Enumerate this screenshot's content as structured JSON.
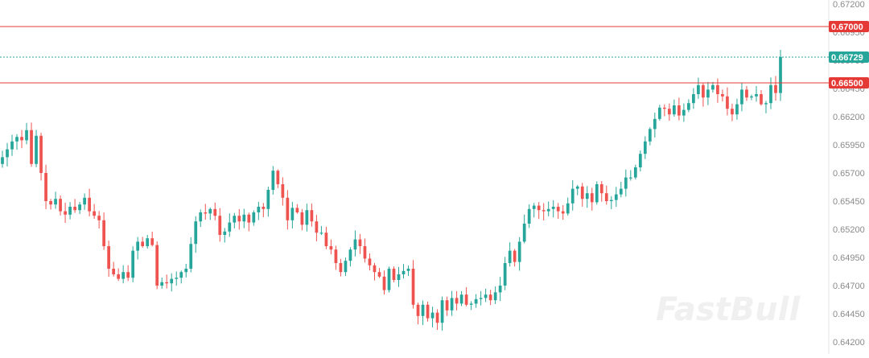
{
  "watermark": "FastBull",
  "colors": {
    "up": "#26a69a",
    "down": "#ef5350",
    "level_line": "#e53935",
    "current_line": "#26a69a"
  },
  "chart_data": {
    "type": "candlestick",
    "ylim": [
      0.642,
      0.672
    ],
    "y_ticks": [
      "0.67200",
      "0.66950",
      "0.66700",
      "0.66450",
      "0.66200",
      "0.65950",
      "0.65700",
      "0.65450",
      "0.65200",
      "0.64950",
      "0.64700",
      "0.64450",
      "0.64200"
    ],
    "levels": [
      {
        "value": 0.67,
        "label": "0.67000"
      },
      {
        "value": 0.665,
        "label": "0.66500"
      }
    ],
    "current_price": {
      "value": 0.66729,
      "label": "0.66729"
    },
    "closes": [
      0.6584,
      0.6591,
      0.6598,
      0.6602,
      0.6599,
      0.6608,
      0.6578,
      0.6603,
      0.657,
      0.6545,
      0.6542,
      0.6547,
      0.6536,
      0.6533,
      0.654,
      0.6537,
      0.6542,
      0.6548,
      0.6536,
      0.6532,
      0.6528,
      0.6505,
      0.6485,
      0.648,
      0.6476,
      0.6482,
      0.6477,
      0.6501,
      0.6509,
      0.6505,
      0.6512,
      0.6506,
      0.647,
      0.6473,
      0.6472,
      0.6476,
      0.6477,
      0.6482,
      0.6485,
      0.6507,
      0.6527,
      0.6535,
      0.6534,
      0.6538,
      0.6532,
      0.6515,
      0.6518,
      0.6526,
      0.6532,
      0.6527,
      0.6533,
      0.6526,
      0.6535,
      0.654,
      0.6538,
      0.6555,
      0.6572,
      0.656,
      0.6548,
      0.6528,
      0.6539,
      0.6535,
      0.6524,
      0.6537,
      0.6527,
      0.6517,
      0.6517,
      0.6505,
      0.6502,
      0.649,
      0.6482,
      0.6492,
      0.6502,
      0.6511,
      0.6505,
      0.6494,
      0.6488,
      0.6482,
      0.6478,
      0.6466,
      0.6485,
      0.6475,
      0.648,
      0.6483,
      0.6485,
      0.6453,
      0.6443,
      0.6453,
      0.6441,
      0.6446,
      0.6437,
      0.6457,
      0.6448,
      0.6459,
      0.6454,
      0.6462,
      0.6453,
      0.6454,
      0.6458,
      0.6459,
      0.6462,
      0.6457,
      0.6464,
      0.647,
      0.649,
      0.6501,
      0.6491,
      0.6509,
      0.6525,
      0.6538,
      0.6541,
      0.6537,
      0.6536,
      0.6538,
      0.654,
      0.6536,
      0.6534,
      0.6543,
      0.6556,
      0.6558,
      0.6547,
      0.6552,
      0.6544,
      0.656,
      0.6552,
      0.6545,
      0.6546,
      0.6551,
      0.6556,
      0.6566,
      0.6566,
      0.6575,
      0.6587,
      0.6598,
      0.6609,
      0.6618,
      0.6628,
      0.6627,
      0.6622,
      0.663,
      0.6621,
      0.6626,
      0.6632,
      0.664,
      0.6648,
      0.6637,
      0.6644,
      0.6648,
      0.664,
      0.6638,
      0.6627,
      0.6622,
      0.6631,
      0.6644,
      0.6637,
      0.6638,
      0.664,
      0.6631,
      0.6632,
      0.6648,
      0.6641,
      0.6673
    ],
    "title": "",
    "xlabel": "",
    "ylabel": ""
  }
}
